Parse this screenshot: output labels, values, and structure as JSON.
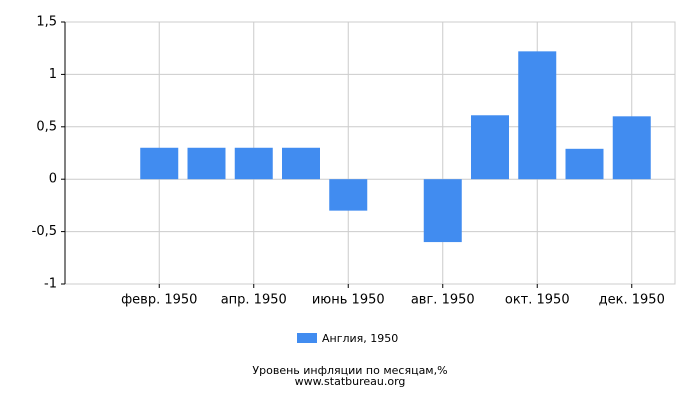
{
  "chart_data": {
    "type": "bar",
    "title": "Уровень инфляции по месяцам,%",
    "subtitle": "www.statbureau.org",
    "categories": [
      null,
      "февр. 1950",
      null,
      "апр. 1950",
      null,
      "июнь 1950",
      null,
      "авг. 1950",
      null,
      "окт. 1950",
      null,
      "дек. 1950"
    ],
    "series": [
      {
        "name": "Англия, 1950",
        "color": "#418cf0",
        "values": [
          0,
          0.3,
          0.3,
          0.3,
          0.3,
          -0.3,
          0,
          -0.6,
          0.61,
          1.22,
          0.29,
          0.6
        ]
      }
    ],
    "ylim": [
      -1,
      1.5
    ],
    "yticks": [
      {
        "value": 1.5,
        "label": "1,5"
      },
      1,
      {
        "value": 0.5,
        "label": "0,5"
      },
      0,
      {
        "value": -0.5,
        "label": "-0,5"
      },
      -1
    ],
    "grid": true
  }
}
